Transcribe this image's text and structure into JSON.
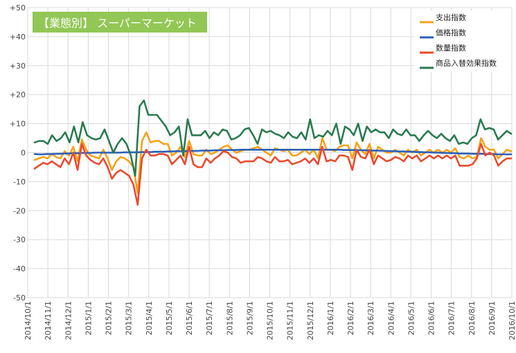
{
  "title": "【業態別】 スーパーマーケット",
  "colors": {
    "title_bg": "#92c755",
    "grid": "#d9d9d9",
    "spending": "#f5a21a",
    "price": "#2c5fb8",
    "quantity": "#e84a2e",
    "mix": "#2a7a4e"
  },
  "chart_data": {
    "type": "line",
    "title": "【業態別】 スーパーマーケット",
    "ylim": [
      -50,
      50
    ],
    "y_ticks": [
      50,
      40,
      30,
      20,
      10,
      0,
      -10,
      -20,
      -30,
      -40,
      -50
    ],
    "y_tick_labels": [
      "+50",
      "+40",
      "+30",
      "+20",
      "+10",
      "0",
      "-10",
      "-20",
      "-30",
      "-40",
      "-50"
    ],
    "x_tick_labels": [
      "2014/10/1",
      "2014/11/1",
      "2014/12/1",
      "2015/1/1",
      "2015/2/1",
      "2015/3/1",
      "2015/4/1",
      "2015/5/1",
      "2015/6/1",
      "2015/7/1",
      "2015/8/1",
      "2015/9/1",
      "2015/10/1",
      "2015/11/1",
      "2015/12/1",
      "2016/1/1",
      "2016/2/1",
      "2016/3/1",
      "2016/4/1",
      "2016/5/1",
      "2016/6/1",
      "2016/7/1",
      "2016/8/1",
      "2016/9/1",
      "2016/10/1"
    ],
    "legend_position": "top-right",
    "grid": true,
    "series": [
      {
        "name": "支出指数",
        "color": "#f5a21a",
        "values": [
          -2.5,
          -2,
          -1.5,
          -2,
          -0.5,
          -1.5,
          -2,
          0.5,
          -1,
          2,
          -3,
          4.5,
          1,
          -1,
          -1.5,
          -2,
          1,
          -2,
          -6,
          -3,
          -1.5,
          -2,
          -3,
          -5,
          -14,
          4,
          7,
          3.5,
          4,
          4,
          3,
          3,
          -1,
          0,
          2,
          -1.5,
          4,
          -0.5,
          -1,
          -1,
          1,
          -0.5,
          0,
          1,
          2,
          2.5,
          1,
          0,
          0.5,
          1,
          1,
          1.5,
          2,
          1,
          0,
          -1,
          1.5,
          1,
          0.5,
          1,
          -1,
          -1,
          0,
          1,
          -0.5,
          1,
          -2,
          5,
          1,
          1,
          0.5,
          2,
          2.5,
          2.5,
          -2,
          3.5,
          1,
          -0.5,
          3,
          -2,
          2,
          1,
          0,
          0,
          1,
          0,
          -1,
          1,
          0,
          1,
          -1,
          0,
          1,
          0,
          1,
          0,
          1,
          0,
          1.5,
          -1.5,
          -2,
          -1,
          -2,
          -1.5,
          5,
          2,
          1,
          1,
          -2,
          -0.5,
          1,
          0.5
        ]
      },
      {
        "name": "価格指数",
        "color": "#2c5fb8",
        "values": [
          -0.5,
          -0.6,
          -0.6,
          -0.5,
          -0.5,
          -0.4,
          -0.4,
          -0.3,
          -0.3,
          -0.2,
          -0.2,
          -0.1,
          -0.1,
          -0.1,
          0,
          0,
          0,
          0,
          0,
          0,
          0,
          0.1,
          0.1,
          0.1,
          0.1,
          0.2,
          0.2,
          0.2,
          0.3,
          0.3,
          0.3,
          0.4,
          0.4,
          0.5,
          0.5,
          0.5,
          0.6,
          0.6,
          0.6,
          0.7,
          0.7,
          0.7,
          0.8,
          0.8,
          0.8,
          0.9,
          0.9,
          0.9,
          1,
          1,
          1,
          1,
          1,
          1,
          1,
          1,
          1,
          1,
          1,
          1,
          1,
          1,
          1,
          1,
          1,
          1,
          1,
          1,
          1,
          1,
          1,
          1,
          0.9,
          0.9,
          0.9,
          0.8,
          0.8,
          0.8,
          0.7,
          0.7,
          0.7,
          0.6,
          0.6,
          0.5,
          0.5,
          0.4,
          0.4,
          0.3,
          0.3,
          0.2,
          0.2,
          0.1,
          0.1,
          0,
          0,
          -0.1,
          -0.1,
          -0.2,
          -0.2,
          -0.3,
          -0.3,
          -0.3,
          -0.4,
          -0.4,
          -0.4,
          -0.5,
          -0.5,
          -0.5,
          -0.6,
          -0.6,
          -0.6,
          -0.6
        ]
      },
      {
        "name": "数量指数",
        "color": "#e84a2e",
        "values": [
          -5.5,
          -4.5,
          -3.5,
          -4,
          -3,
          -4,
          -5,
          -2,
          -4,
          0,
          -6,
          3,
          -1,
          -2.5,
          -3.5,
          -4,
          -2,
          -5,
          -9,
          -7,
          -6,
          -7,
          -8,
          -11,
          -18,
          -2,
          1,
          -1,
          -1,
          -0.5,
          -0.5,
          -1,
          -4,
          -2.5,
          -1,
          -4,
          2,
          -4,
          -5,
          -5,
          -2,
          -3.5,
          -2,
          -1,
          0.5,
          0,
          -1.5,
          -2,
          -3.5,
          -3,
          -3,
          -3,
          -1.5,
          -2,
          -3,
          -3.5,
          -1.5,
          -3,
          -3,
          -2.5,
          -4,
          -3.5,
          -3,
          -2,
          -3.5,
          -2,
          -4,
          2,
          -3,
          -2.5,
          -3,
          -1,
          -1,
          -1.5,
          -6,
          1,
          -1.5,
          -2,
          1,
          -4,
          -1,
          -2,
          -3,
          -2.5,
          -1.5,
          -2,
          -3,
          -1,
          -2,
          -1,
          -3,
          -2,
          -1,
          -2,
          -1,
          -2,
          -1,
          -2,
          -1,
          -4.5,
          -4.5,
          -4.5,
          -4,
          -2,
          3,
          -1,
          0,
          -1,
          -4.5,
          -3,
          -2,
          -2
        ]
      },
      {
        "name": "商品入替効果指数",
        "color": "#2a7a4e",
        "values": [
          3.5,
          4,
          4,
          3,
          6,
          4,
          5,
          7,
          3.5,
          9,
          3.5,
          10.5,
          6,
          5,
          4.5,
          5,
          8,
          4,
          0,
          3,
          5,
          3,
          -1,
          -8,
          16,
          18,
          13,
          13,
          13,
          11,
          9,
          6,
          7,
          9,
          -1,
          11.5,
          6,
          6,
          6,
          7.5,
          5,
          7,
          6,
          8,
          7.5,
          4.5,
          5,
          6,
          8,
          8.5,
          6,
          3,
          8,
          7,
          7.5,
          6.5,
          6,
          5,
          7,
          5.5,
          5,
          7,
          4.5,
          11.5,
          5,
          6,
          5.5,
          7.5,
          6,
          10,
          3,
          9,
          8,
          6,
          10,
          4,
          9,
          7,
          8,
          7,
          7,
          5,
          8,
          6.5,
          6,
          8,
          6,
          6,
          4,
          6,
          7.5,
          6,
          5,
          6.5,
          5,
          4,
          6,
          3,
          3.5,
          3,
          5,
          6,
          11.5,
          8,
          8.5,
          8,
          4.5,
          6,
          7.5,
          6.5
        ]
      }
    ]
  }
}
